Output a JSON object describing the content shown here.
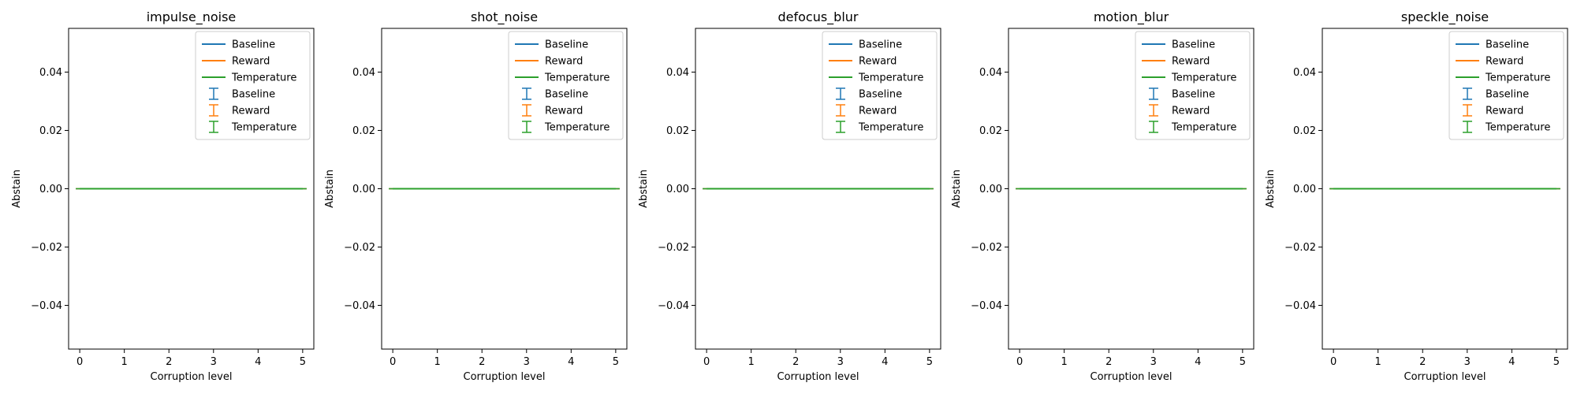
{
  "chart_data": [
    {
      "type": "line",
      "title": "impulse_noise",
      "xlabel": "Corruption level",
      "ylabel": "Abstain",
      "x": [
        0,
        1,
        2,
        3,
        4,
        5
      ],
      "xlim": [
        -0.25,
        5.25
      ],
      "ylim": [
        -0.055,
        0.055
      ],
      "xticks": [
        0,
        1,
        2,
        3,
        4,
        5
      ],
      "yticks": [
        0.04,
        0.02,
        0.0,
        -0.02,
        -0.04
      ],
      "ytick_labels": [
        "0.04",
        "0.02",
        "0.00",
        "−0.02",
        "−0.04"
      ],
      "grid": false,
      "legend_placement": "top-right",
      "series": [
        {
          "name": "Baseline",
          "values": [
            0,
            0,
            0,
            0,
            0,
            0
          ],
          "errors": [
            0,
            0,
            0,
            0,
            0,
            0
          ],
          "color": "#1f77b4"
        },
        {
          "name": "Reward",
          "values": [
            0,
            0,
            0,
            0,
            0,
            0
          ],
          "errors": [
            0,
            0,
            0,
            0,
            0,
            0
          ],
          "color": "#ff7f0e"
        },
        {
          "name": "Temperature",
          "values": [
            0,
            0,
            0,
            0,
            0,
            0
          ],
          "errors": [
            0,
            0,
            0,
            0,
            0,
            0
          ],
          "color": "#2ca02c"
        }
      ]
    },
    {
      "type": "line",
      "title": "shot_noise",
      "xlabel": "Corruption level",
      "ylabel": "Abstain",
      "x": [
        0,
        1,
        2,
        3,
        4,
        5
      ],
      "xlim": [
        -0.25,
        5.25
      ],
      "ylim": [
        -0.055,
        0.055
      ],
      "xticks": [
        0,
        1,
        2,
        3,
        4,
        5
      ],
      "yticks": [
        0.04,
        0.02,
        0.0,
        -0.02,
        -0.04
      ],
      "ytick_labels": [
        "0.04",
        "0.02",
        "0.00",
        "−0.02",
        "−0.04"
      ],
      "grid": false,
      "legend_placement": "top-right",
      "series": [
        {
          "name": "Baseline",
          "values": [
            0,
            0,
            0,
            0,
            0,
            0
          ],
          "errors": [
            0,
            0,
            0,
            0,
            0,
            0
          ],
          "color": "#1f77b4"
        },
        {
          "name": "Reward",
          "values": [
            0,
            0,
            0,
            0,
            0,
            0
          ],
          "errors": [
            0,
            0,
            0,
            0,
            0,
            0
          ],
          "color": "#ff7f0e"
        },
        {
          "name": "Temperature",
          "values": [
            0,
            0,
            0,
            0,
            0,
            0
          ],
          "errors": [
            0,
            0,
            0,
            0,
            0,
            0
          ],
          "color": "#2ca02c"
        }
      ]
    },
    {
      "type": "line",
      "title": "defocus_blur",
      "xlabel": "Corruption level",
      "ylabel": "Abstain",
      "x": [
        0,
        1,
        2,
        3,
        4,
        5
      ],
      "xlim": [
        -0.25,
        5.25
      ],
      "ylim": [
        -0.055,
        0.055
      ],
      "xticks": [
        0,
        1,
        2,
        3,
        4,
        5
      ],
      "yticks": [
        0.04,
        0.02,
        0.0,
        -0.02,
        -0.04
      ],
      "ytick_labels": [
        "0.04",
        "0.02",
        "0.00",
        "−0.02",
        "−0.04"
      ],
      "grid": false,
      "legend_placement": "top-right",
      "series": [
        {
          "name": "Baseline",
          "values": [
            0,
            0,
            0,
            0,
            0,
            0
          ],
          "errors": [
            0,
            0,
            0,
            0,
            0,
            0
          ],
          "color": "#1f77b4"
        },
        {
          "name": "Reward",
          "values": [
            0,
            0,
            0,
            0,
            0,
            0
          ],
          "errors": [
            0,
            0,
            0,
            0,
            0,
            0
          ],
          "color": "#ff7f0e"
        },
        {
          "name": "Temperature",
          "values": [
            0,
            0,
            0,
            0,
            0,
            0
          ],
          "errors": [
            0,
            0,
            0,
            0,
            0,
            0
          ],
          "color": "#2ca02c"
        }
      ]
    },
    {
      "type": "line",
      "title": "motion_blur",
      "xlabel": "Corruption level",
      "ylabel": "Abstain",
      "x": [
        0,
        1,
        2,
        3,
        4,
        5
      ],
      "xlim": [
        -0.25,
        5.25
      ],
      "ylim": [
        -0.055,
        0.055
      ],
      "xticks": [
        0,
        1,
        2,
        3,
        4,
        5
      ],
      "yticks": [
        0.04,
        0.02,
        0.0,
        -0.02,
        -0.04
      ],
      "ytick_labels": [
        "0.04",
        "0.02",
        "0.00",
        "−0.02",
        "−0.04"
      ],
      "grid": false,
      "legend_placement": "top-right",
      "series": [
        {
          "name": "Baseline",
          "values": [
            0,
            0,
            0,
            0,
            0,
            0
          ],
          "errors": [
            0,
            0,
            0,
            0,
            0,
            0
          ],
          "color": "#1f77b4"
        },
        {
          "name": "Reward",
          "values": [
            0,
            0,
            0,
            0,
            0,
            0
          ],
          "errors": [
            0,
            0,
            0,
            0,
            0,
            0
          ],
          "color": "#ff7f0e"
        },
        {
          "name": "Temperature",
          "values": [
            0,
            0,
            0,
            0,
            0,
            0
          ],
          "errors": [
            0,
            0,
            0,
            0,
            0,
            0
          ],
          "color": "#2ca02c"
        }
      ]
    },
    {
      "type": "line",
      "title": "speckle_noise",
      "xlabel": "Corruption level",
      "ylabel": "Abstain",
      "x": [
        0,
        1,
        2,
        3,
        4,
        5
      ],
      "xlim": [
        -0.25,
        5.25
      ],
      "ylim": [
        -0.055,
        0.055
      ],
      "xticks": [
        0,
        1,
        2,
        3,
        4,
        5
      ],
      "yticks": [
        0.04,
        0.02,
        0.0,
        -0.02,
        -0.04
      ],
      "ytick_labels": [
        "0.04",
        "0.02",
        "0.00",
        "−0.02",
        "−0.04"
      ],
      "grid": false,
      "legend_placement": "top-right",
      "series": [
        {
          "name": "Baseline",
          "values": [
            0,
            0,
            0,
            0,
            0,
            0
          ],
          "errors": [
            0,
            0,
            0,
            0,
            0,
            0
          ],
          "color": "#1f77b4"
        },
        {
          "name": "Reward",
          "values": [
            0,
            0,
            0,
            0,
            0,
            0
          ],
          "errors": [
            0,
            0,
            0,
            0,
            0,
            0
          ],
          "color": "#ff7f0e"
        },
        {
          "name": "Temperature",
          "values": [
            0,
            0,
            0,
            0,
            0,
            0
          ],
          "errors": [
            0,
            0,
            0,
            0,
            0,
            0
          ],
          "color": "#2ca02c"
        }
      ]
    }
  ]
}
